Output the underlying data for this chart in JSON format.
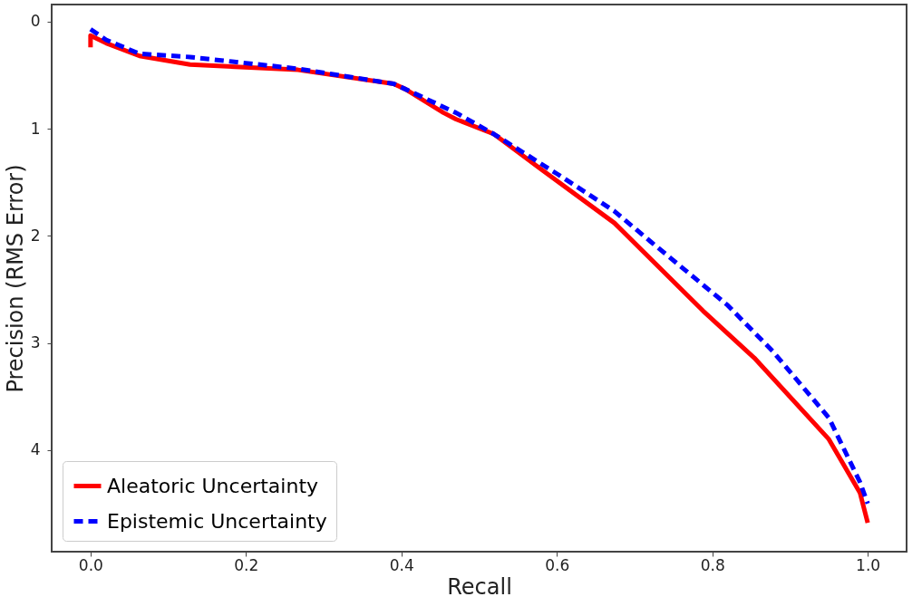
{
  "chart_data": {
    "type": "line",
    "xlabel": "Recall",
    "ylabel": "Precision (RMS Error)",
    "xlim": [
      -0.05,
      1.05
    ],
    "ylim": [
      4.95,
      -0.16
    ],
    "xticks": [
      {
        "value": 0,
        "label": "0.0"
      },
      0.2,
      0.4,
      0.6,
      0.8,
      {
        "value": 1,
        "label": "1.0"
      }
    ],
    "yticks": [
      0,
      1,
      2,
      3,
      4
    ],
    "grid": false,
    "legend": "bottom left",
    "marker": "none",
    "series": [
      {
        "name": "Aleatoric Uncertainty",
        "color": "#ff0000",
        "line_style": "solid",
        "x": [
          0,
          0,
          0.02,
          0.063,
          0.128,
          0.267,
          0.39,
          0.405,
          0.454,
          0.47,
          0.519,
          0.58,
          0.674,
          0.788,
          0.854,
          0.95,
          0.99,
          1.0
        ],
        "values": [
          0.24,
          0.13,
          0.2,
          0.32,
          0.4,
          0.45,
          0.58,
          0.63,
          0.85,
          0.91,
          1.05,
          1.38,
          1.88,
          2.7,
          3.14,
          3.9,
          4.4,
          4.68
        ]
      },
      {
        "name": "Epistemic Uncertainty",
        "color": "#0000ff",
        "line_style": "dashed",
        "x": [
          0,
          0.02,
          0.063,
          0.128,
          0.267,
          0.39,
          0.405,
          0.47,
          0.519,
          0.6,
          0.674,
          0.72,
          0.82,
          0.878,
          0.95,
          0.99,
          1.0
        ],
        "values": [
          0.07,
          0.17,
          0.3,
          0.33,
          0.44,
          0.58,
          0.63,
          0.85,
          1.05,
          1.42,
          1.77,
          2.05,
          2.65,
          3.08,
          3.7,
          4.3,
          4.5
        ]
      }
    ]
  }
}
